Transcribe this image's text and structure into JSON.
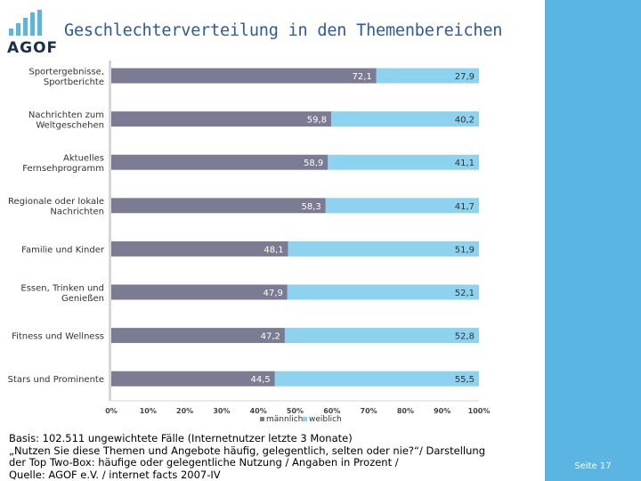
{
  "header": {
    "title": "Geschlechterverteilung in den Themenbereichen",
    "logo_text": "AGOF"
  },
  "sidebar": {
    "page_label": "Seite 17",
    "color": "#5bb5e3"
  },
  "footer": {
    "lines": [
      "Basis: 102.511 ungewichtete Fälle (Internetnutzer letzte 3 Monate)",
      "„Nutzen Sie diese Themen und Angebote häufig, gelegentlich, selten oder nie?“/ Darstellung",
      "der Top Two-Box: häufige oder gelegentliche Nutzung / Angaben in Prozent /",
      "Quelle: AGOF e.V. / internet facts 2007-IV"
    ]
  },
  "chart_data": {
    "type": "bar",
    "orientation": "horizontal",
    "stacked": true,
    "categories": [
      [
        "Sportergebnisse,",
        "Sportberichte"
      ],
      [
        "Nachrichten zum",
        "Weltgeschehen"
      ],
      [
        "Aktuelles",
        "Fernsehprogramm"
      ],
      [
        "Regionale oder lokale",
        "Nachrichten"
      ],
      [
        "Familie und Kinder"
      ],
      [
        "Essen, Trinken und",
        "Genießen"
      ],
      [
        "Fitness und Wellness"
      ],
      [
        "Stars und Prominente"
      ]
    ],
    "series": [
      {
        "name": "männlich",
        "color": "#7b7b93",
        "values": [
          72.1,
          59.8,
          58.9,
          58.3,
          48.1,
          47.9,
          47.2,
          44.5
        ]
      },
      {
        "name": "weiblich",
        "color": "#8dd3f0",
        "values": [
          27.9,
          40.2,
          41.1,
          41.7,
          51.9,
          52.1,
          52.8,
          55.5
        ]
      }
    ],
    "value_labels": {
      "männlich": [
        "72,1",
        "59,8",
        "58,9",
        "58,3",
        "48,1",
        "47,9",
        "47,2",
        "44,5"
      ],
      "weiblich": [
        "27,9",
        "40,2",
        "41,1",
        "41,7",
        "51,9",
        "52,1",
        "52,8",
        "55,5"
      ]
    },
    "xticks": [
      "0%",
      "10%",
      "20%",
      "30%",
      "40%",
      "50%",
      "60%",
      "70%",
      "80%",
      "90%",
      "100%"
    ],
    "xlim": [
      0,
      100
    ],
    "legend_position": "bottom"
  }
}
